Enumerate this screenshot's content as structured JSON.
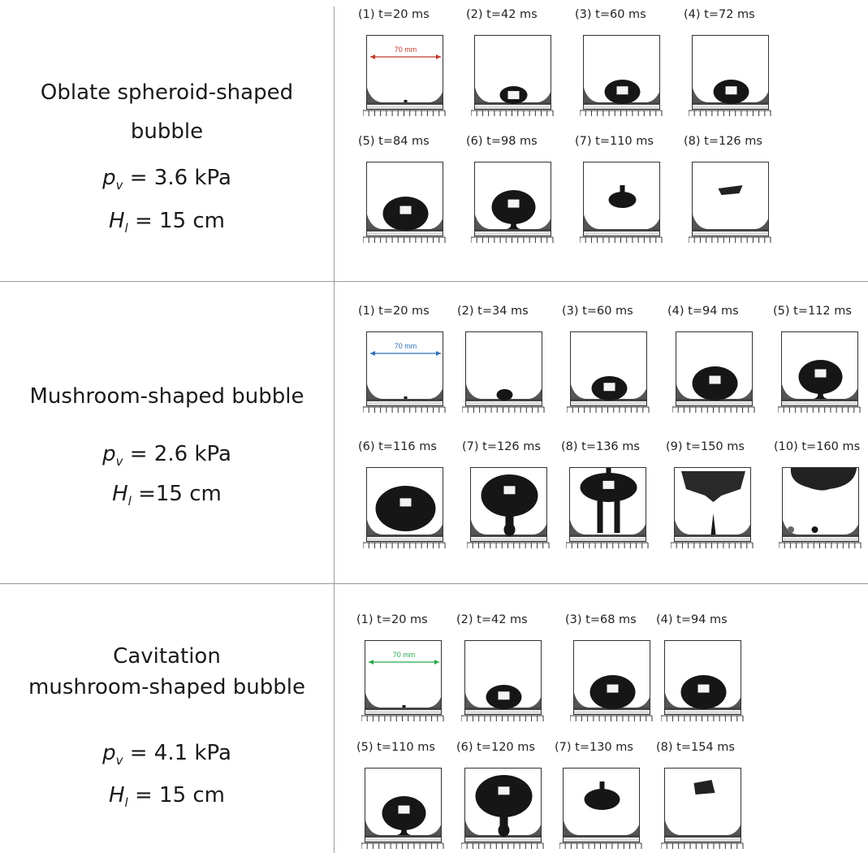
{
  "panels": [
    {
      "title_line1": "Oblate spheroid-shaped",
      "title_line2": "bubble",
      "pv_value": "= 3.6 kPa",
      "hl_value": "= 15 cm",
      "scale_label": "70 mm",
      "scale_color": "#c0392b",
      "frames": [
        {
          "caption": "(1)  t=20 ms"
        },
        {
          "caption": "(2)  t=42 ms"
        },
        {
          "caption": "(3)  t=60 ms"
        },
        {
          "caption": "(4)  t=72 ms"
        },
        {
          "caption": "(5)  t=84 ms"
        },
        {
          "caption": "(6)  t=98 ms"
        },
        {
          "caption": "(7)  t=110 ms"
        },
        {
          "caption": "(8)  t=126 ms"
        }
      ]
    },
    {
      "title_line1": "Mushroom-shaped bubble",
      "pv_value": "= 2.6 kPa",
      "hl_value": "=15 cm",
      "scale_label": "70 mm",
      "scale_color": "#2e6fb5",
      "frames": [
        {
          "caption": "(1)  t=20 ms"
        },
        {
          "caption": "(2)  t=34 ms"
        },
        {
          "caption": "(3)  t=60 ms"
        },
        {
          "caption": "(4)  t=94 ms"
        },
        {
          "caption": "(5)  t=112 ms"
        },
        {
          "caption": "(6)  t=116 ms"
        },
        {
          "caption": "(7)  t=126 ms"
        },
        {
          "caption": "(8)  t=136 ms"
        },
        {
          "caption": "(9)  t=150 ms"
        },
        {
          "caption": "(10)  t=160 ms"
        }
      ]
    },
    {
      "title_line1": "Cavitation",
      "title_line2": "mushroom-shaped bubble",
      "pv_value": "= 4.1 kPa",
      "hl_value": "= 15 cm",
      "scale_label": "70 mm",
      "scale_color": "#27a64a",
      "frames": [
        {
          "caption": "(1)  t=20 ms"
        },
        {
          "caption": "(2)  t=42 ms"
        },
        {
          "caption": "(3)  t=68 ms"
        },
        {
          "caption": "(4)  t=94 ms"
        },
        {
          "caption": "(5)  t=110 ms"
        },
        {
          "caption": "(6)  t=120 ms"
        },
        {
          "caption": "(7)  t=130 ms"
        },
        {
          "caption": "(8)  t=154 ms"
        }
      ]
    }
  ],
  "symbols": {
    "pressure": "p",
    "pressure_sub": "v",
    "height": "H",
    "height_sub": "l"
  }
}
